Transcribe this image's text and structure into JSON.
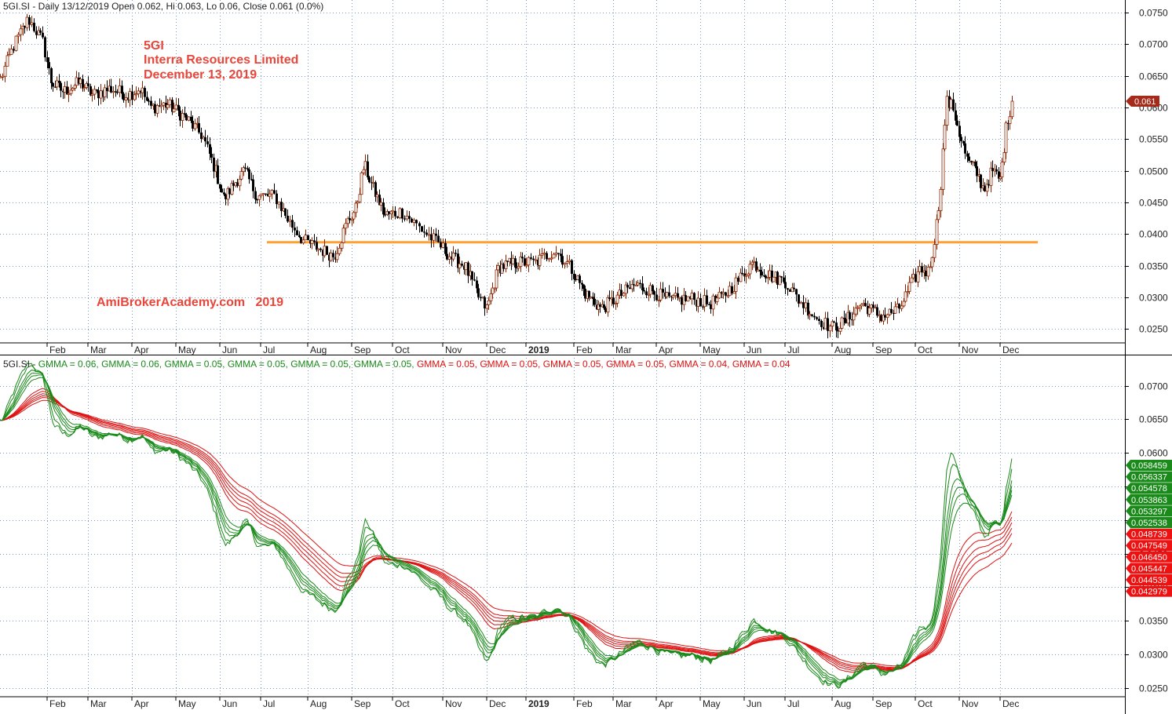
{
  "chart_data": [
    {
      "type": "candlestick",
      "title": "5GI.SI - Daily 13/12/2019 Open 0.062, Hi 0.063, Lo 0.06, Close 0.061 (0.0%)",
      "x_tick_labels": [
        "Feb",
        "Mar",
        "Apr",
        "May",
        "Jun",
        "Jul",
        "Aug",
        "Sep",
        "Oct",
        "Nov",
        "Dec",
        "2019",
        "Feb",
        "Mar",
        "Apr",
        "May",
        "Jun",
        "Jul",
        "Aug",
        "Sep",
        "Oct",
        "Nov",
        "Dec"
      ],
      "y_tick_labels": [
        "0.0750",
        "0.0700",
        "0.0650",
        "0.0600",
        "0.0550",
        "0.0500",
        "0.0450",
        "0.0400",
        "0.0350",
        "0.0300",
        "0.0250"
      ],
      "ylim": [
        0.0228,
        0.077
      ],
      "last_price_label": "0.061",
      "resistance_level": 0.0387,
      "annotations": [
        "5GI",
        "Interra Resources Limited",
        "December 13, 2019"
      ],
      "watermark": "AmiBrokerAcademy.com   2019",
      "close_path": [
        {
          "m": 0.0,
          "v": 0.0645
        },
        {
          "m": 0.3,
          "v": 0.07
        },
        {
          "m": 0.6,
          "v": 0.074
        },
        {
          "m": 0.9,
          "v": 0.0705
        },
        {
          "m": 1.1,
          "v": 0.064
        },
        {
          "m": 1.4,
          "v": 0.0625
        },
        {
          "m": 1.8,
          "v": 0.064
        },
        {
          "m": 2.1,
          "v": 0.062
        },
        {
          "m": 2.5,
          "v": 0.063
        },
        {
          "m": 2.9,
          "v": 0.062
        },
        {
          "m": 3.2,
          "v": 0.063
        },
        {
          "m": 3.4,
          "v": 0.06
        },
        {
          "m": 3.8,
          "v": 0.0605
        },
        {
          "m": 4.2,
          "v": 0.0585
        },
        {
          "m": 4.6,
          "v": 0.0555
        },
        {
          "m": 4.9,
          "v": 0.05
        },
        {
          "m": 5.1,
          "v": 0.0455
        },
        {
          "m": 5.4,
          "v": 0.0485
        },
        {
          "m": 5.6,
          "v": 0.05
        },
        {
          "m": 5.9,
          "v": 0.046
        },
        {
          "m": 6.3,
          "v": 0.046
        },
        {
          "m": 6.6,
          "v": 0.042
        },
        {
          "m": 6.9,
          "v": 0.039
        },
        {
          "m": 7.3,
          "v": 0.0375
        },
        {
          "m": 7.6,
          "v": 0.0365
        },
        {
          "m": 7.9,
          "v": 0.042
        },
        {
          "m": 8.1,
          "v": 0.044
        },
        {
          "m": 8.3,
          "v": 0.051
        },
        {
          "m": 8.5,
          "v": 0.0475
        },
        {
          "m": 8.8,
          "v": 0.043
        },
        {
          "m": 9.2,
          "v": 0.0435
        },
        {
          "m": 9.6,
          "v": 0.0405
        },
        {
          "m": 9.9,
          "v": 0.0385
        },
        {
          "m": 10.2,
          "v": 0.0362
        },
        {
          "m": 10.5,
          "v": 0.035
        },
        {
          "m": 10.8,
          "v": 0.0302
        },
        {
          "m": 11.0,
          "v": 0.0282
        },
        {
          "m": 11.3,
          "v": 0.0348
        },
        {
          "m": 11.8,
          "v": 0.0355
        },
        {
          "m": 12.2,
          "v": 0.0355
        },
        {
          "m": 12.6,
          "v": 0.0375
        },
        {
          "m": 12.9,
          "v": 0.035
        },
        {
          "m": 13.3,
          "v": 0.0305
        },
        {
          "m": 13.7,
          "v": 0.0282
        },
        {
          "m": 14.0,
          "v": 0.0295
        },
        {
          "m": 14.5,
          "v": 0.032
        },
        {
          "m": 14.9,
          "v": 0.031
        },
        {
          "m": 15.3,
          "v": 0.0295
        },
        {
          "m": 15.8,
          "v": 0.0298
        },
        {
          "m": 16.2,
          "v": 0.029
        },
        {
          "m": 16.5,
          "v": 0.03
        },
        {
          "m": 16.9,
          "v": 0.033
        },
        {
          "m": 17.2,
          "v": 0.0355
        },
        {
          "m": 17.6,
          "v": 0.0335
        },
        {
          "m": 18.0,
          "v": 0.0325
        },
        {
          "m": 18.3,
          "v": 0.0295
        },
        {
          "m": 18.7,
          "v": 0.0265
        },
        {
          "m": 19.0,
          "v": 0.0252
        },
        {
          "m": 19.3,
          "v": 0.026
        },
        {
          "m": 19.7,
          "v": 0.029
        },
        {
          "m": 20.2,
          "v": 0.027
        },
        {
          "m": 20.6,
          "v": 0.028
        },
        {
          "m": 20.9,
          "v": 0.032
        },
        {
          "m": 21.1,
          "v": 0.0345
        },
        {
          "m": 21.3,
          "v": 0.034
        },
        {
          "m": 21.45,
          "v": 0.04
        },
        {
          "m": 21.55,
          "v": 0.046
        },
        {
          "m": 21.7,
          "v": 0.061
        },
        {
          "m": 21.85,
          "v": 0.06
        },
        {
          "m": 22.0,
          "v": 0.056
        },
        {
          "m": 22.2,
          "v": 0.0515
        },
        {
          "m": 22.4,
          "v": 0.05
        },
        {
          "m": 22.6,
          "v": 0.047
        },
        {
          "m": 22.8,
          "v": 0.05
        },
        {
          "m": 23.0,
          "v": 0.0485
        },
        {
          "m": 23.15,
          "v": 0.057
        },
        {
          "m": 23.3,
          "v": 0.0615
        }
      ]
    },
    {
      "type": "line",
      "title_prefix": "5GI.SI - ",
      "legend": [
        {
          "label": "GMMA = 0.06,",
          "color": "#1a8a1a"
        },
        {
          "label": "GMMA = 0.06,",
          "color": "#1a8a1a"
        },
        {
          "label": "GMMA = 0.05,",
          "color": "#1a8a1a"
        },
        {
          "label": "GMMA = 0.05,",
          "color": "#1a8a1a"
        },
        {
          "label": "GMMA = 0.05,",
          "color": "#1a8a1a"
        },
        {
          "label": "GMMA = 0.05,",
          "color": "#1a8a1a"
        },
        {
          "label": "GMMA = 0.05,",
          "color": "#dd1111"
        },
        {
          "label": "GMMA = 0.05,",
          "color": "#dd1111"
        },
        {
          "label": "GMMA = 0.05,",
          "color": "#dd1111"
        },
        {
          "label": "GMMA = 0.05,",
          "color": "#dd1111"
        },
        {
          "label": "GMMA = 0.04,",
          "color": "#dd1111"
        },
        {
          "label": "GMMA = 0.04",
          "color": "#dd1111"
        }
      ],
      "x_tick_labels": [
        "Feb",
        "Mar",
        "Apr",
        "May",
        "Jun",
        "Jul",
        "Aug",
        "Sep",
        "Oct",
        "Nov",
        "Dec",
        "2019",
        "Feb",
        "Mar",
        "Apr",
        "May",
        "Jun",
        "Jul",
        "Aug",
        "Sep",
        "Oct",
        "Nov",
        "Dec"
      ],
      "y_tick_labels": [
        "0.0700",
        "0.0650",
        "0.0600",
        "0.0550",
        "0.0500",
        "0.0450",
        "0.0400",
        "0.0350",
        "0.0300",
        "0.0250"
      ],
      "ylim": [
        0.0237,
        0.0745
      ],
      "short_term_periods": [
        3,
        5,
        8,
        10,
        12,
        15
      ],
      "long_term_periods": [
        30,
        35,
        40,
        45,
        50,
        60
      ],
      "value_badges": {
        "green": [
          "0.058459",
          "0.056337",
          "0.054578",
          "0.053863",
          "0.053297",
          "0.052538"
        ],
        "red": [
          "0.048739",
          "0.047549",
          "0.046450",
          "0.045447",
          "0.044539",
          "0.042979"
        ]
      }
    }
  ],
  "colors": {
    "up_candle": "#8b2500",
    "down_candle": "#000000",
    "resistance": "#ffa033",
    "short_ma": "#1a8a1a",
    "long_ma": "#dd1111",
    "badge_green": "#1a8a1a",
    "badge_red": "#ee1111",
    "badge_price": "#a52a1a",
    "grid": "#7799bb"
  }
}
